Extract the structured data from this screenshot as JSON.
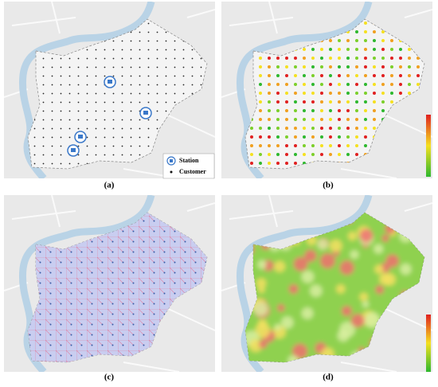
{
  "panels": [
    {
      "label": "(a)"
    },
    {
      "label": "(b)"
    },
    {
      "label": "(c)"
    },
    {
      "label": "(d)"
    }
  ],
  "legend": {
    "station": "Station",
    "customer": "Customer"
  }
}
